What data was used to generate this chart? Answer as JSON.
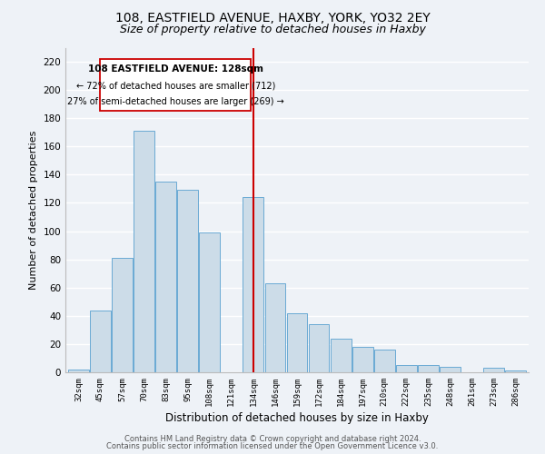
{
  "title": "108, EASTFIELD AVENUE, HAXBY, YORK, YO32 2EY",
  "subtitle": "Size of property relative to detached houses in Haxby",
  "xlabel": "Distribution of detached houses by size in Haxby",
  "ylabel": "Number of detached properties",
  "bar_labels": [
    "32sqm",
    "45sqm",
    "57sqm",
    "70sqm",
    "83sqm",
    "95sqm",
    "108sqm",
    "121sqm",
    "134sqm",
    "146sqm",
    "159sqm",
    "172sqm",
    "184sqm",
    "197sqm",
    "210sqm",
    "222sqm",
    "235sqm",
    "248sqm",
    "261sqm",
    "273sqm",
    "286sqm"
  ],
  "bar_values": [
    2,
    44,
    81,
    171,
    135,
    129,
    99,
    0,
    124,
    63,
    42,
    34,
    24,
    18,
    16,
    5,
    5,
    4,
    0,
    3,
    1
  ],
  "bar_color": "#ccdce8",
  "bar_edge_color": "#6aaad4",
  "red_line_x": 8,
  "ylim": [
    0,
    230
  ],
  "yticks": [
    0,
    20,
    40,
    60,
    80,
    100,
    120,
    140,
    160,
    180,
    200,
    220
  ],
  "annotation_title": "108 EASTFIELD AVENUE: 128sqm",
  "annotation_line1": "← 72% of detached houses are smaller (712)",
  "annotation_line2": "27% of semi-detached houses are larger (269) →",
  "footer1": "Contains HM Land Registry data © Crown copyright and database right 2024.",
  "footer2": "Contains public sector information licensed under the Open Government Licence v3.0.",
  "bg_color": "#eef2f7",
  "grid_color": "#ffffff",
  "title_fontsize": 10,
  "subtitle_fontsize": 9,
  "annotation_box_color": "#ffffff",
  "annotation_box_edge": "#cc0000",
  "red_line_color": "#cc0000"
}
